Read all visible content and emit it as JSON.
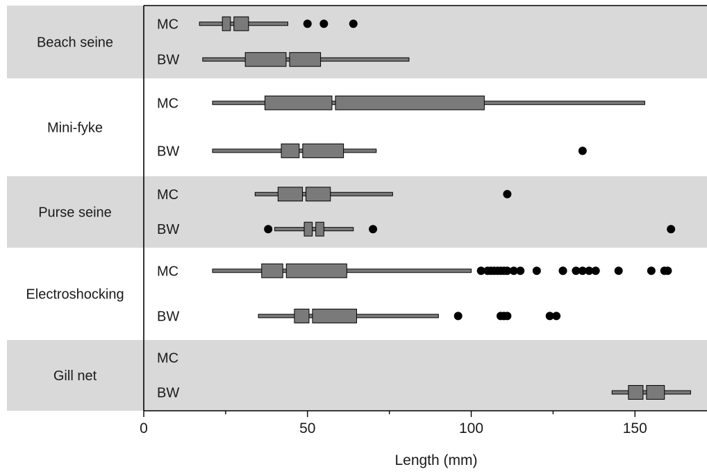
{
  "chart_data": {
    "type": "boxplot",
    "title": "",
    "xlabel": "Length (mm)",
    "ylabel": "",
    "xlim": [
      0,
      172
    ],
    "xticks": [
      0,
      50,
      100,
      150
    ],
    "xtick_labels": [
      "0",
      "50",
      "100",
      "150"
    ],
    "band_colors": [
      "#d9d9d9",
      "#ffffff"
    ],
    "box_color": "#7a7a7a",
    "groups": [
      {
        "name": "Beach seine",
        "shaded": true,
        "series": [
          {
            "label": "MC",
            "whisker_low": 17,
            "q1": 24,
            "median": 27,
            "q3": 32,
            "whisker_high": 44,
            "outliers": [
              50,
              55,
              64
            ]
          },
          {
            "label": "BW",
            "whisker_low": 18,
            "q1": 31,
            "median": 44,
            "q3": 54,
            "whisker_high": 81,
            "outliers": []
          }
        ]
      },
      {
        "name": "Mini-fyke",
        "shaded": false,
        "series": [
          {
            "label": "MC",
            "whisker_low": 21,
            "q1": 37,
            "median": 58,
            "q3": 104,
            "whisker_high": 153,
            "outliers": []
          },
          {
            "label": "BW",
            "whisker_low": 21,
            "q1": 42,
            "median": 48,
            "q3": 61,
            "whisker_high": 71,
            "outliers": [
              134
            ]
          }
        ]
      },
      {
        "name": "Purse seine",
        "shaded": true,
        "series": [
          {
            "label": "MC",
            "whisker_low": 34,
            "q1": 41,
            "median": 49,
            "q3": 57,
            "whisker_high": 76,
            "outliers": [
              111
            ]
          },
          {
            "label": "BW",
            "whisker_low": 40,
            "q1": 49,
            "median": 52,
            "q3": 55,
            "whisker_high": 64,
            "outliers": [
              38,
              70,
              161
            ]
          }
        ]
      },
      {
        "name": "Electroshocking",
        "shaded": false,
        "series": [
          {
            "label": "MC",
            "whisker_low": 21,
            "q1": 36,
            "median": 43,
            "q3": 62,
            "whisker_high": 100,
            "outliers": [
              103,
              105,
              106,
              107,
              108,
              109,
              110,
              111,
              113,
              115,
              120,
              128,
              128,
              132,
              134,
              136,
              138,
              145,
              155,
              159,
              160
            ]
          },
          {
            "label": "BW",
            "whisker_low": 35,
            "q1": 46,
            "median": 51,
            "q3": 65,
            "whisker_high": 90,
            "outliers": [
              96,
              109,
              110,
              111,
              124,
              126
            ]
          }
        ]
      },
      {
        "name": "Gill net",
        "shaded": true,
        "series": [
          {
            "label": "MC",
            "whisker_low": null,
            "q1": null,
            "median": null,
            "q3": null,
            "whisker_high": null,
            "outliers": []
          },
          {
            "label": "BW",
            "whisker_low": 143,
            "q1": 148,
            "median": 153,
            "q3": 159,
            "whisker_high": 167,
            "outliers": []
          }
        ]
      }
    ]
  }
}
